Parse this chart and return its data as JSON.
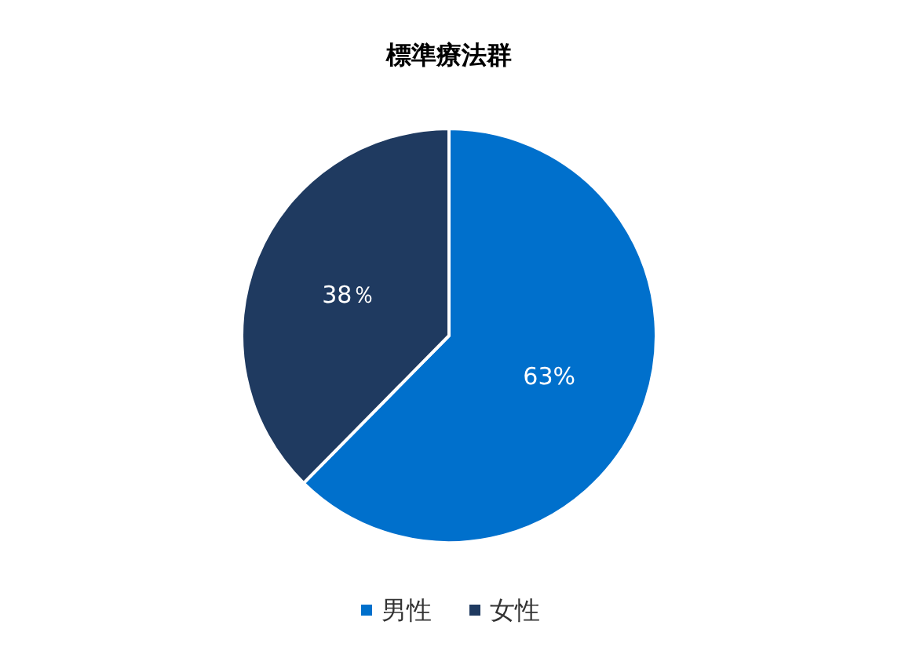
{
  "chart_data": {
    "type": "pie",
    "title": "標準療法群",
    "categories": [
      "男性",
      "女性"
    ],
    "values": [
      63,
      38
    ],
    "colors": [
      "#0070cc",
      "#1f3a60"
    ],
    "value_labels": [
      "63%",
      "38％"
    ],
    "legend": "bottom"
  }
}
